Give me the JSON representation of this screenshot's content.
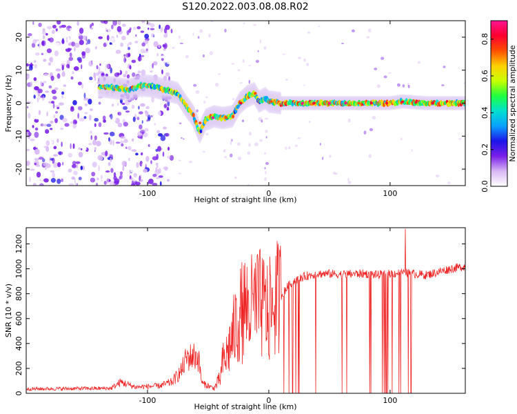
{
  "figure": {
    "title": "S120.2022.003.08.08.R02"
  },
  "chart_data": [
    {
      "type": "heatmap",
      "name": "spectrogram",
      "xlabel": "Height of straight line (km)",
      "ylabel": "Frequency (Hz)",
      "xlim": [
        -200,
        162
      ],
      "ylim": [
        -25,
        25
      ],
      "xticks": [
        -100,
        0,
        100
      ],
      "yticks": [
        -20,
        -10,
        0,
        10,
        20
      ],
      "colorbar": {
        "label": "Normalized spectral amplitude",
        "range": [
          0,
          0.9
        ],
        "ticks": [
          0.0,
          0.2,
          0.4,
          0.6,
          0.8
        ],
        "colormap": [
          "#ffffff",
          "#d9b8f5",
          "#7a1fe8",
          "#1c14e8",
          "#0aa0ff",
          "#00e0d0",
          "#20ff40",
          "#c8ff00",
          "#ffd000",
          "#ff5000",
          "#ff0030",
          "#ff1493"
        ]
      },
      "signal_track": {
        "description_points_x": [
          -135,
          -125,
          -115,
          -105,
          -95,
          -85,
          -75,
          -68,
          -62,
          -57,
          -52,
          -45,
          -38,
          -30,
          -24,
          -18,
          -12,
          -8,
          -3,
          0,
          10,
          20,
          40,
          60,
          80,
          100,
          110,
          130,
          162
        ],
        "description_points_y": [
          5,
          4.5,
          4,
          5.5,
          5,
          4,
          3,
          -1,
          -4,
          -9,
          -5,
          -4,
          -4.5,
          -4,
          0,
          2,
          3,
          0.5,
          1.5,
          0.5,
          0,
          0,
          0,
          0,
          0,
          0,
          0.5,
          0,
          0
        ]
      }
    },
    {
      "type": "line",
      "name": "snr",
      "xlabel": "Height of straight line (km)",
      "ylabel": "SNR (10 * v/v)",
      "xlim": [
        -200,
        162
      ],
      "ylim": [
        0,
        1330
      ],
      "xticks": [
        -100,
        0,
        100
      ],
      "yticks": [
        0,
        200,
        400,
        600,
        800,
        1000,
        1200
      ],
      "color": "#ee2222",
      "envelope_x": [
        -200,
        -130,
        -122,
        -110,
        -90,
        -80,
        -72,
        -68,
        -62,
        -58,
        -55,
        -45,
        -40,
        -38,
        -35,
        -30,
        -25,
        -20,
        -15,
        -10,
        -5,
        0,
        5,
        10,
        15,
        20,
        25,
        30,
        40,
        50,
        60,
        70,
        80,
        90,
        100,
        110,
        120,
        130,
        140,
        150,
        162
      ],
      "envelope_y": [
        35,
        40,
        90,
        50,
        60,
        90,
        180,
        280,
        300,
        280,
        80,
        40,
        120,
        250,
        300,
        450,
        600,
        700,
        680,
        720,
        700,
        650,
        740,
        780,
        850,
        900,
        920,
        940,
        960,
        960,
        955,
        960,
        960,
        950,
        960,
        970,
        960,
        950,
        975,
        1000,
        1020
      ]
    }
  ]
}
